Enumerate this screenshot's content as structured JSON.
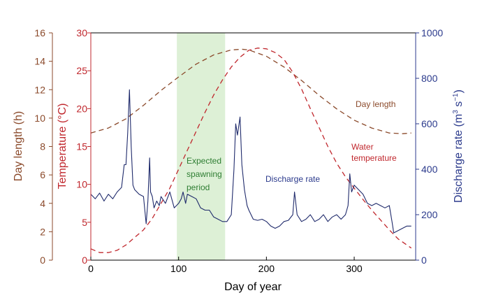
{
  "chart_data": {
    "type": "line",
    "xlabel": "Day of year",
    "xlim": [
      0,
      370
    ],
    "xticks": [
      0,
      100,
      200,
      300
    ],
    "axes": {
      "day_length": {
        "label": "Day length (h)",
        "ylim": [
          0,
          16
        ],
        "ticks": [
          0,
          2,
          4,
          6,
          8,
          10,
          12,
          14,
          16
        ],
        "color": "#8B4A2B"
      },
      "temperature": {
        "label": "Temperature (°C)",
        "ylim": [
          0,
          30
        ],
        "ticks": [
          0,
          5,
          10,
          15,
          20,
          25,
          30
        ],
        "color": "#C0272D"
      },
      "discharge": {
        "label_main": "Discharge rate (m",
        "label_sup": "3",
        "label_mid": " s",
        "label_sup2": "−1",
        "label_end": ")",
        "ylim": [
          0,
          1000
        ],
        "ticks": [
          0,
          200,
          400,
          600,
          800,
          1000
        ],
        "color": "#2B3A8C"
      }
    },
    "shaded_region": {
      "x_start": 98,
      "x_end": 153,
      "color": "#DDF0D6",
      "label_lines": [
        "Expected",
        "spawning",
        "period"
      ],
      "label_color": "#2E7D32"
    },
    "series": [
      {
        "name": "Day length",
        "axis": "day_length",
        "color": "#8B4A2B",
        "dash": true,
        "x": [
          0,
          20,
          40,
          60,
          80,
          100,
          120,
          140,
          160,
          172,
          180,
          200,
          220,
          240,
          260,
          280,
          300,
          320,
          340,
          355,
          365
        ],
        "y": [
          8.95,
          9.3,
          9.95,
          10.9,
          11.95,
          12.9,
          13.8,
          14.45,
          14.8,
          14.85,
          14.8,
          14.35,
          13.6,
          12.65,
          11.6,
          10.65,
          9.85,
          9.3,
          8.95,
          8.9,
          8.95
        ]
      },
      {
        "name": "Water temperature",
        "axis": "temperature",
        "color": "#C0272D",
        "dash": true,
        "x": [
          0,
          10,
          20,
          30,
          40,
          50,
          60,
          70,
          80,
          90,
          100,
          110,
          120,
          130,
          140,
          150,
          160,
          170,
          180,
          190,
          200,
          210,
          220,
          230,
          240,
          250,
          260,
          270,
          280,
          290,
          300,
          310,
          320,
          330,
          340,
          350,
          365
        ],
        "y": [
          1.5,
          1.0,
          1.0,
          1.3,
          2.0,
          3.0,
          4.0,
          5.5,
          7.5,
          9.5,
          12.0,
          14.5,
          17.0,
          19.5,
          21.8,
          23.8,
          25.5,
          26.8,
          27.7,
          28.0,
          27.9,
          27.4,
          26.5,
          24.8,
          22.6,
          20.0,
          17.5,
          15.0,
          12.8,
          11.0,
          9.5,
          8.0,
          6.6,
          5.3,
          4.0,
          2.8,
          1.6
        ]
      },
      {
        "name": "Discharge rate",
        "axis": "discharge",
        "color": "#1F2A6B",
        "dash": false,
        "x": [
          0,
          5,
          10,
          15,
          20,
          25,
          30,
          35,
          38,
          40,
          42,
          44,
          46,
          48,
          50,
          55,
          60,
          63,
          65,
          67,
          68,
          70,
          72,
          75,
          78,
          80,
          85,
          90,
          95,
          100,
          103,
          105,
          108,
          110,
          115,
          120,
          125,
          130,
          135,
          140,
          145,
          150,
          155,
          160,
          163,
          165,
          167,
          170,
          172,
          175,
          178,
          180,
          185,
          190,
          195,
          200,
          205,
          210,
          215,
          220,
          225,
          230,
          232,
          235,
          240,
          245,
          250,
          255,
          260,
          265,
          270,
          275,
          280,
          285,
          290,
          293,
          295,
          297,
          300,
          305,
          310,
          315,
          320,
          325,
          330,
          335,
          340,
          343,
          345,
          350,
          355,
          360,
          365
        ],
        "y": [
          290,
          270,
          295,
          260,
          290,
          270,
          300,
          320,
          420,
          420,
          560,
          750,
          500,
          330,
          310,
          290,
          280,
          160,
          260,
          450,
          300,
          280,
          230,
          260,
          240,
          280,
          250,
          300,
          230,
          250,
          270,
          300,
          250,
          290,
          280,
          270,
          230,
          220,
          220,
          190,
          180,
          170,
          170,
          200,
          400,
          600,
          550,
          630,
          420,
          310,
          240,
          220,
          180,
          175,
          180,
          170,
          150,
          140,
          150,
          170,
          175,
          200,
          300,
          200,
          170,
          180,
          200,
          170,
          180,
          200,
          170,
          190,
          200,
          180,
          200,
          240,
          380,
          300,
          330,
          310,
          290,
          250,
          240,
          250,
          240,
          230,
          240,
          170,
          120,
          130,
          140,
          150,
          150
        ]
      }
    ],
    "annotations": [
      {
        "text": "Day length",
        "color": "#8B4A2B"
      },
      {
        "text_lines": [
          "Water",
          "temperature"
        ],
        "color": "#C0272D"
      },
      {
        "text": "Discharge rate",
        "color": "#2B3A8C"
      }
    ]
  }
}
